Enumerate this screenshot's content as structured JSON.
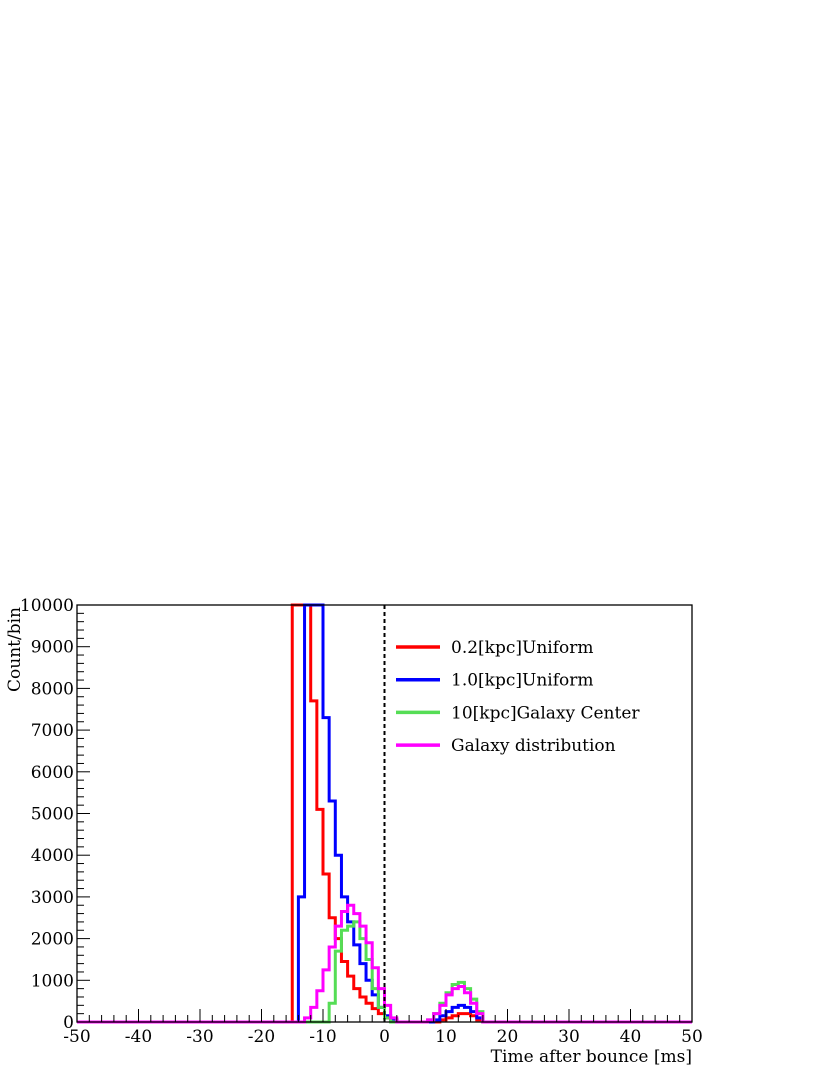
{
  "chart_data": {
    "type": "line",
    "style": "step-histogram",
    "title": "",
    "xlabel": "Time after bounce [ms]",
    "ylabel": "Count/bin",
    "xlim": [
      -50,
      50
    ],
    "ylim": [
      0,
      10000
    ],
    "x_ticks": [
      -50,
      -40,
      -30,
      -20,
      -10,
      0,
      10,
      20,
      30,
      40,
      50
    ],
    "y_ticks": [
      0,
      1000,
      2000,
      3000,
      4000,
      5000,
      6000,
      7000,
      8000,
      9000,
      10000
    ],
    "bin_width": 1,
    "bin_edges_range": [
      -50,
      50
    ],
    "grid": false,
    "legend_position": "top-right",
    "vertical_marker": {
      "x": 0,
      "style": "dashed",
      "color": "#000000"
    },
    "series": [
      {
        "name": "0.2[kpc]Uniform",
        "color": "#ff0000",
        "bins_start": -15,
        "values": [
          10000,
          10000,
          10000,
          7700,
          5100,
          3550,
          2500,
          2000,
          1450,
          1100,
          800,
          600,
          450,
          320,
          200,
          100,
          50,
          0,
          0,
          0,
          0,
          0,
          0,
          0,
          50,
          100,
          150,
          200,
          200,
          150,
          50,
          0
        ]
      },
      {
        "name": "1.0[kpc]Uniform",
        "color": "#0000ff",
        "bins_start": -15,
        "values": [
          0,
          3000,
          10000,
          10000,
          10000,
          7300,
          5300,
          4000,
          3000,
          2400,
          1850,
          1400,
          1000,
          650,
          350,
          150,
          50,
          0,
          0,
          0,
          0,
          0,
          0,
          50,
          150,
          250,
          350,
          400,
          350,
          250,
          100,
          0
        ]
      },
      {
        "name": "10[kpc]Galaxy Center",
        "color": "#55dd55",
        "bins_start": -15,
        "values": [
          0,
          0,
          0,
          0,
          0,
          0,
          450,
          1700,
          2200,
          2300,
          2400,
          2000,
          1500,
          800,
          350,
          100,
          0,
          0,
          0,
          0,
          0,
          0,
          50,
          200,
          450,
          700,
          900,
          950,
          800,
          550,
          250,
          0
        ]
      },
      {
        "name": "Galaxy distribution",
        "color": "#ff00ff",
        "bins_start": -15,
        "values": [
          0,
          0,
          100,
          350,
          750,
          1250,
          1800,
          2300,
          2650,
          2800,
          2600,
          2300,
          1900,
          1300,
          800,
          400,
          100,
          0,
          0,
          0,
          0,
          0,
          50,
          200,
          400,
          650,
          800,
          850,
          700,
          450,
          200,
          0
        ]
      }
    ]
  }
}
